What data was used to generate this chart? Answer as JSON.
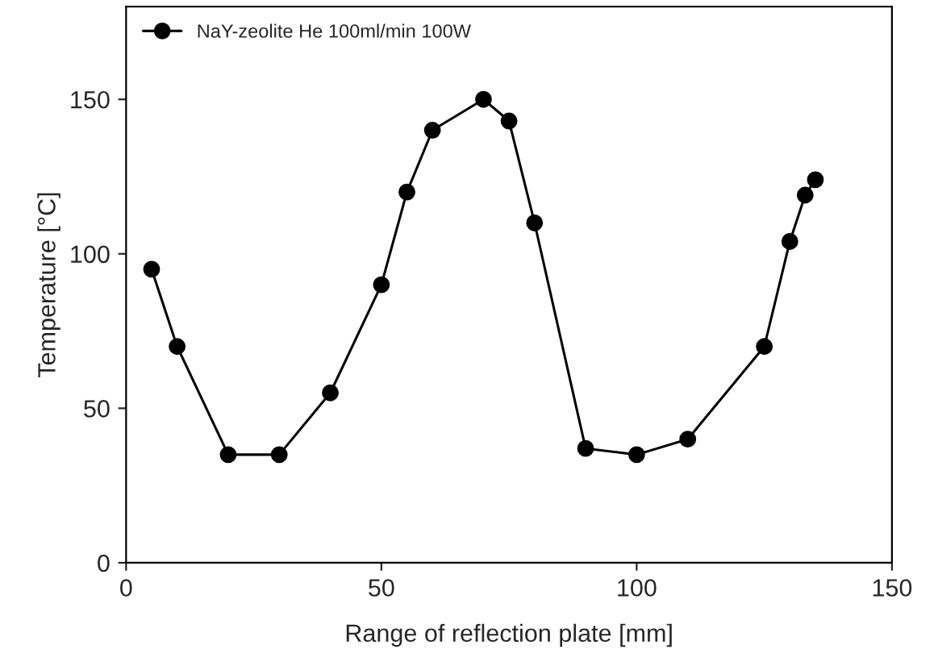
{
  "chart_data": {
    "type": "line",
    "xlabel": "Range of reflection plate [mm]",
    "ylabel": "Temperature [°C]",
    "xlim": [
      0,
      150
    ],
    "xticks": [
      0,
      50,
      100,
      150
    ],
    "ylim": [
      0,
      180
    ],
    "yticks": [
      0,
      50,
      100,
      150
    ],
    "x": [
      5,
      10,
      20,
      30,
      40,
      50,
      55,
      60,
      70,
      75,
      80,
      90,
      100,
      110,
      125,
      130,
      133,
      135
    ],
    "series": [
      {
        "name": "NaY-zeolite He 100ml/min 100W",
        "color": "#000000",
        "values": [
          95,
          70,
          35,
          35,
          55,
          90,
          120,
          140,
          150,
          143,
          110,
          37,
          35,
          40,
          70,
          104,
          119,
          124
        ]
      }
    ],
    "marker": "circle",
    "line_style": "solid",
    "legend": "top left",
    "grid": false
  }
}
